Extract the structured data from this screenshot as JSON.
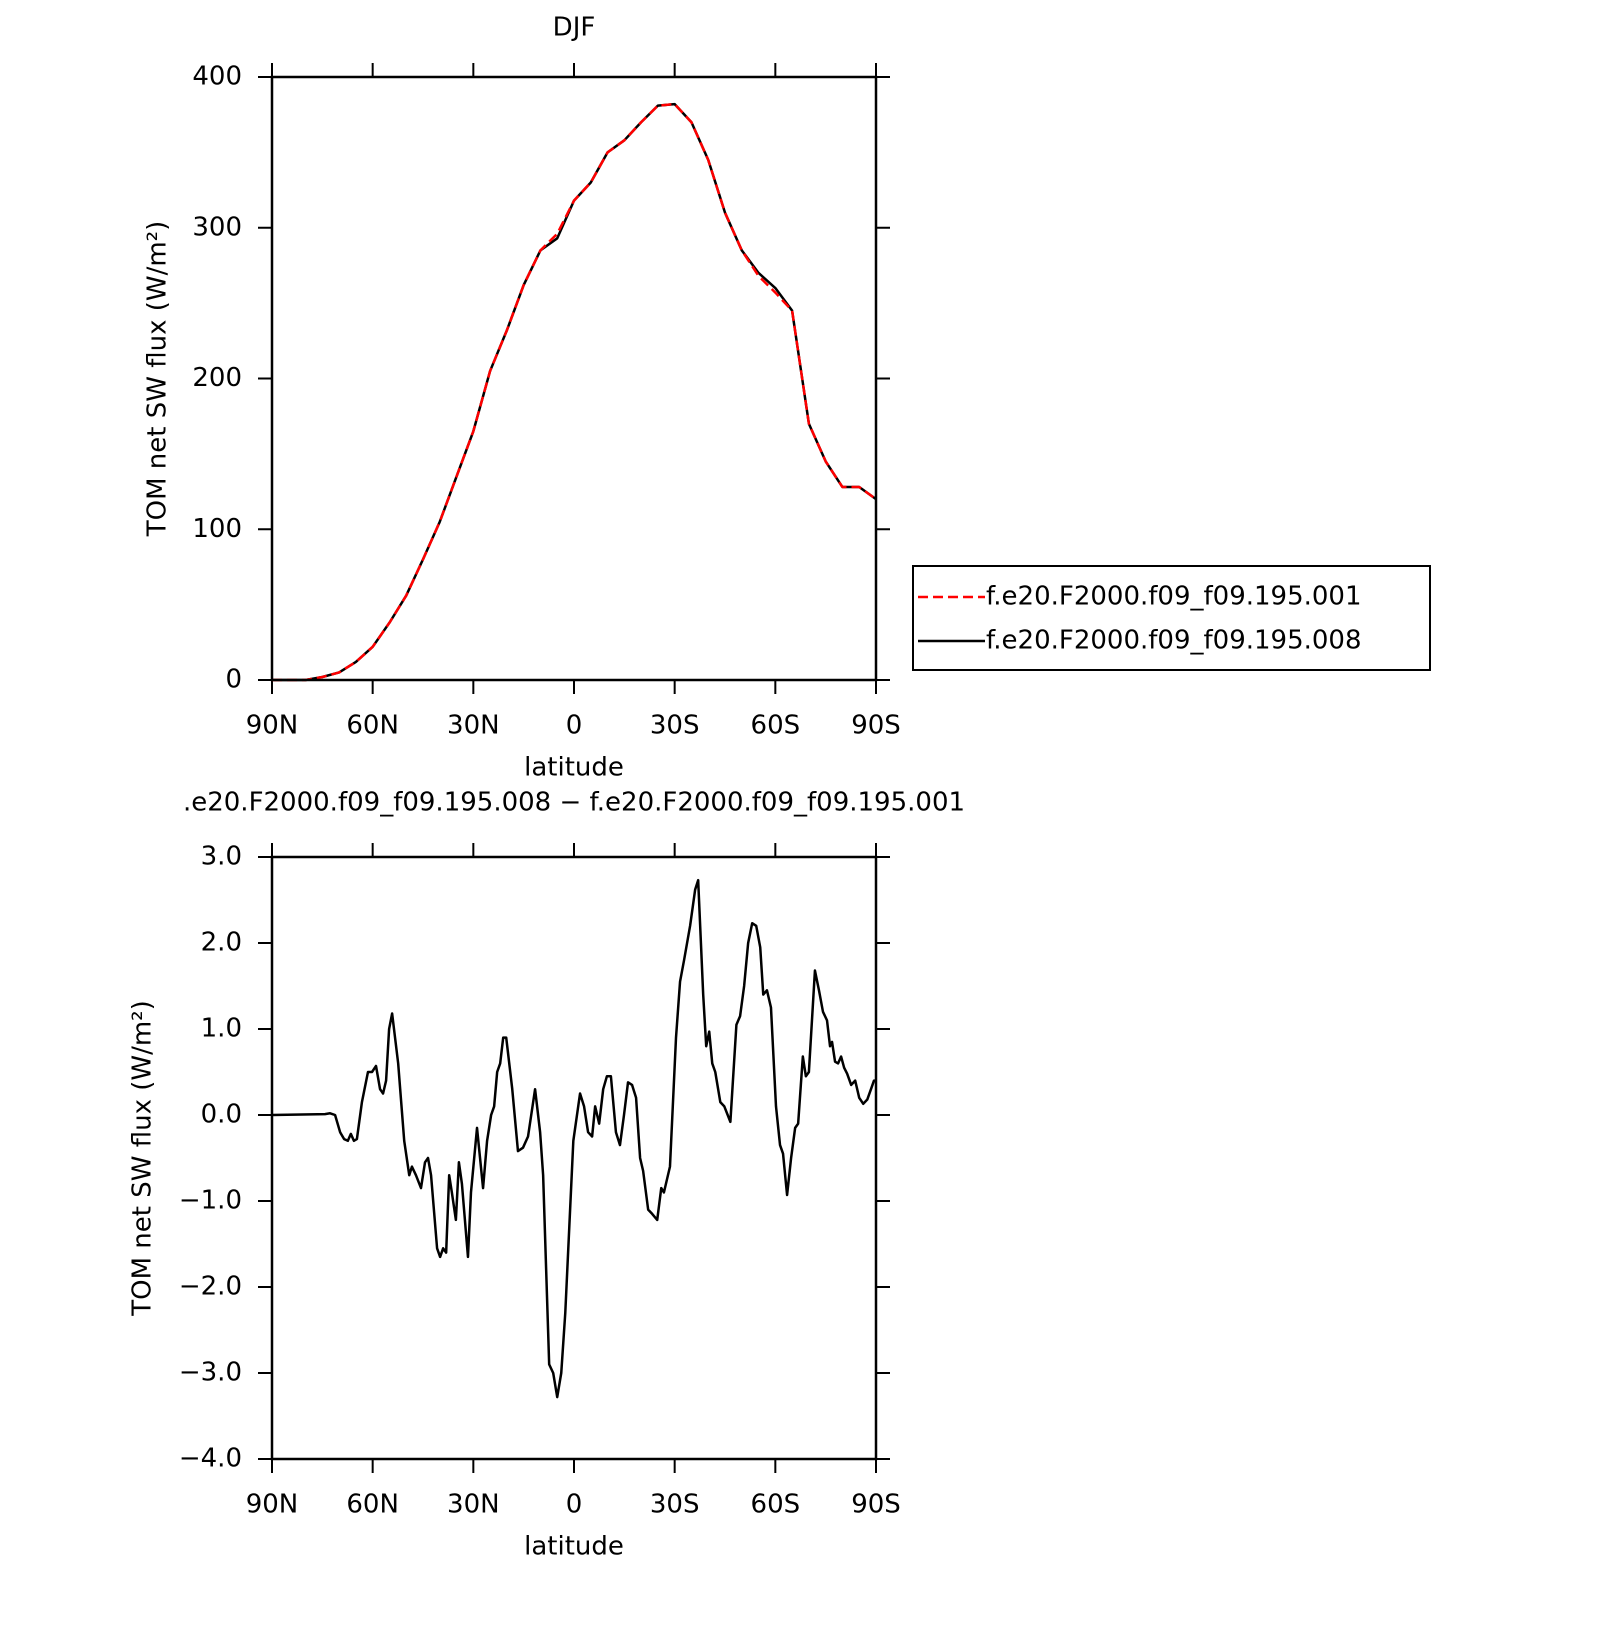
{
  "chart_data": [
    {
      "type": "line",
      "title": "DJF",
      "xlabel": "latitude",
      "ylabel": "TOM net SW flux (W/m²)",
      "x": [
        90,
        85,
        80,
        75,
        70,
        65,
        60,
        55,
        50,
        45,
        40,
        35,
        30,
        25,
        20,
        15,
        10,
        5,
        0,
        -5,
        -10,
        -15,
        -20,
        -25,
        -30,
        -35,
        -40,
        -45,
        -50,
        -55,
        -60,
        -65,
        -70,
        -75,
        -80,
        -85,
        -90
      ],
      "series": [
        {
          "name": "f.e20.F2000.f09_f09.195.001",
          "color": "#ff0000",
          "linestyle": "dashed",
          "values": [
            0,
            0,
            0,
            2,
            5,
            12,
            22,
            38,
            56,
            80,
            105,
            135,
            165,
            205,
            232,
            262,
            285,
            296,
            318,
            330,
            350,
            358,
            370,
            381,
            382,
            370,
            345,
            310,
            285,
            268,
            257,
            245,
            170,
            145,
            128,
            128,
            120
          ]
        },
        {
          "name": "f.e20.F2000.f09_f09.195.008",
          "color": "#000000",
          "linestyle": "solid",
          "values": [
            0,
            0,
            0,
            2,
            5,
            12,
            22,
            38,
            56,
            80,
            105,
            135,
            165,
            205,
            232,
            262,
            285,
            293,
            318,
            330,
            350,
            358,
            370,
            381,
            382,
            370,
            345,
            310,
            285,
            270,
            260,
            245,
            170,
            145,
            128,
            128,
            120
          ]
        }
      ],
      "xlim": [
        90,
        -90
      ],
      "xticks": [
        {
          "value": 90,
          "label": "90N"
        },
        {
          "value": 60,
          "label": "60N"
        },
        {
          "value": 30,
          "label": "30N"
        },
        0,
        {
          "value": -30,
          "label": "30S"
        },
        {
          "value": -60,
          "label": "60S"
        },
        {
          "value": -90,
          "label": "90S"
        }
      ],
      "ylim": [
        0,
        400
      ],
      "yticks": [
        0,
        100,
        200,
        300,
        400
      ],
      "legend": "right"
    },
    {
      "type": "line",
      "title": ".e20.F2000.f09_f09.195.008 − f.e20.F2000.f09_f09.195.001",
      "xlabel": "latitude",
      "ylabel": "TOM net SW flux (W/m²)",
      "x": [
        90,
        74.2,
        72.7,
        71.2,
        69.7,
        68.5,
        67.4,
        66.5,
        65.6,
        64.7,
        63.2,
        61.4,
        60.2,
        59.0,
        57.8,
        56.9,
        56.0,
        55.1,
        54.2,
        52.4,
        50.6,
        49.1,
        48.3,
        47.1,
        45.6,
        44.4,
        43.5,
        42.6,
        40.8,
        39.9,
        39.0,
        38.1,
        37.2,
        36.4,
        35.2,
        34.3,
        33.4,
        31.6,
        30.7,
        28.9,
        27.1,
        25.9,
        24.7,
        23.8,
        22.9,
        22.0,
        21.1,
        20.2,
        18.4,
        16.7,
        15.2,
        13.7,
        11.6,
        10.1,
        9.2,
        8.3,
        7.4,
        6.2,
        5.0,
        3.8,
        2.6,
        1.4,
        0.2,
        -1.8,
        -3.0,
        -4.2,
        -5.4,
        -6.3,
        -7.5,
        -8.7,
        -9.8,
        -11.0,
        -12.5,
        -13.7,
        -14.9,
        -16.1,
        -17.3,
        -18.5,
        -19.7,
        -20.6,
        -22.1,
        -23.3,
        -24.8,
        -26.0,
        -26.8,
        -28.6,
        -30.4,
        -31.6,
        -32.8,
        -34.6,
        -36.1,
        -37.0,
        -38.5,
        -39.4,
        -40.3,
        -41.2,
        -42.1,
        -43.6,
        -44.8,
        -46.6,
        -48.4,
        -49.5,
        -50.7,
        -51.9,
        -53.1,
        -54.3,
        -55.5,
        -56.4,
        -57.5,
        -58.7,
        -60.2,
        -61.4,
        -62.3,
        -63.5,
        -64.7,
        -65.9,
        -66.8,
        -67.6,
        -68.2,
        -69.1,
        -70.0,
        -71.8,
        -73.0,
        -74.2,
        -75.4,
        -76.3,
        -76.9,
        -77.8,
        -78.7,
        -79.6,
        -80.5,
        -81.4,
        -82.6,
        -83.8,
        -85.0,
        -86.2,
        -87.4,
        -88.5,
        -89.4,
        -90.0
      ],
      "series": [
        {
          "name": null,
          "color": "#000000",
          "linestyle": "solid",
          "values": [
            0,
            0.01,
            0.02,
            0,
            -0.2,
            -0.28,
            -0.3,
            -0.22,
            -0.3,
            -0.28,
            0.15,
            0.5,
            0.5,
            0.57,
            0.3,
            0.25,
            0.4,
            1.0,
            1.18,
            0.6,
            -0.3,
            -0.7,
            -0.6,
            -0.7,
            -0.85,
            -0.55,
            -0.5,
            -0.7,
            -1.55,
            -1.65,
            -1.55,
            -1.6,
            -0.7,
            -0.9,
            -1.22,
            -0.55,
            -0.8,
            -1.65,
            -0.9,
            -0.15,
            -0.85,
            -0.3,
            0.0,
            0.1,
            0.5,
            0.6,
            0.9,
            0.9,
            0.3,
            -0.42,
            -0.38,
            -0.25,
            0.3,
            -0.2,
            -0.7,
            -1.8,
            -2.9,
            -3.0,
            -3.28,
            -3.0,
            -2.3,
            -1.3,
            -0.3,
            0.25,
            0.1,
            -0.2,
            -0.25,
            0.1,
            -0.1,
            0.3,
            0.45,
            0.45,
            -0.2,
            -0.35,
            0.0,
            0.38,
            0.35,
            0.2,
            -0.5,
            -0.65,
            -1.1,
            -1.15,
            -1.22,
            -0.85,
            -0.9,
            -0.6,
            0.9,
            1.55,
            1.8,
            2.2,
            2.62,
            2.73,
            1.4,
            0.8,
            0.97,
            0.6,
            0.5,
            0.15,
            0.1,
            -0.08,
            1.05,
            1.15,
            1.5,
            2.0,
            2.23,
            2.2,
            1.95,
            1.4,
            1.45,
            1.25,
            0.1,
            -0.35,
            -0.45,
            -0.93,
            -0.5,
            -0.15,
            -0.1,
            0.35,
            0.68,
            0.45,
            0.5,
            1.68,
            1.45,
            1.2,
            1.1,
            0.8,
            0.85,
            0.62,
            0.6,
            0.68,
            0.55,
            0.48,
            0.35,
            0.4,
            0.2,
            0.13,
            0.18,
            0.3,
            0.4,
            0.4
          ]
        }
      ],
      "xlim": [
        90,
        -90
      ],
      "xticks": [
        {
          "value": 90,
          "label": "90N"
        },
        {
          "value": 60,
          "label": "60N"
        },
        {
          "value": 30,
          "label": "30N"
        },
        0,
        {
          "value": -30,
          "label": "30S"
        },
        {
          "value": -60,
          "label": "60S"
        },
        {
          "value": -90,
          "label": "90S"
        }
      ],
      "ylim": [
        -4,
        3
      ],
      "yticks": [
        {
          "value": -4,
          "label": "−4.0"
        },
        {
          "value": -3,
          "label": "−3.0"
        },
        {
          "value": -2,
          "label": "−2.0"
        },
        {
          "value": -1,
          "label": "−1.0"
        },
        {
          "value": 0,
          "label": "0.0"
        },
        {
          "value": 1,
          "label": "1.0"
        },
        {
          "value": 2,
          "label": "2.0"
        },
        {
          "value": 3,
          "label": "3.0"
        }
      ]
    }
  ]
}
